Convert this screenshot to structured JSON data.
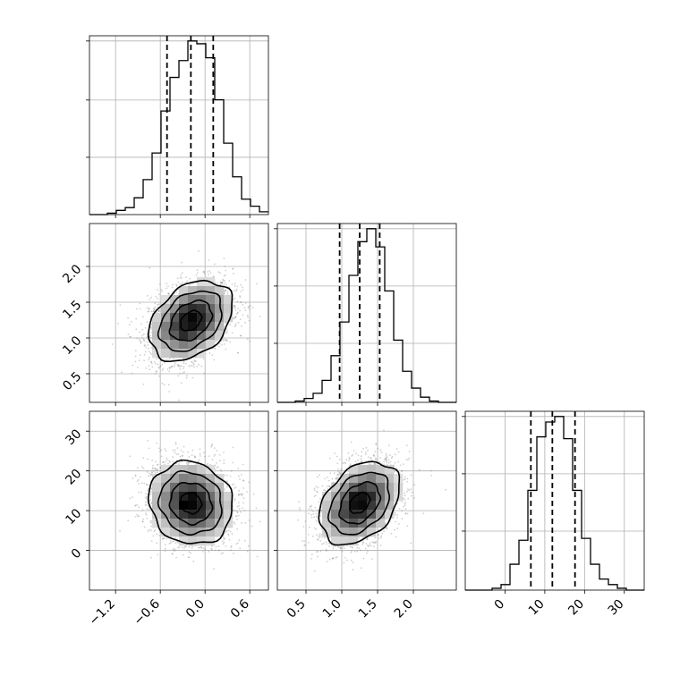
{
  "figure": {
    "type": "corner_plot",
    "background": "#ffffff",
    "line_color": "#000000",
    "grid_color": "#b0b0b0"
  },
  "chart_data": [
    {
      "type": "histogram",
      "parameter_index": 0,
      "range": [
        -1.55,
        0.85
      ],
      "bin_edges": [
        -1.55,
        -1.43,
        -1.31,
        -1.19,
        -1.07,
        -0.95,
        -0.83,
        -0.71,
        -0.59,
        -0.47,
        -0.35,
        -0.23,
        -0.11,
        0.01,
        0.13,
        0.25,
        0.37,
        0.49,
        0.61,
        0.73,
        0.85
      ],
      "counts": [
        0,
        0,
        1,
        3,
        5,
        12,
        25,
        44,
        74,
        98,
        110,
        124,
        122,
        112,
        82,
        51,
        27,
        11,
        6,
        2
      ],
      "quantiles": [
        -0.51,
        -0.19,
        0.11
      ],
      "yticks_relative": [
        0.33,
        0.66,
        1.0
      ],
      "grid": true
    },
    {
      "type": "histogram",
      "parameter_index": 1,
      "range": [
        0.1,
        2.6
      ],
      "bin_edges": [
        0.1,
        0.225,
        0.35,
        0.475,
        0.6,
        0.725,
        0.85,
        0.975,
        1.1,
        1.225,
        1.35,
        1.475,
        1.6,
        1.725,
        1.85,
        1.975,
        2.1,
        2.225,
        2.35,
        2.475,
        2.6
      ],
      "counts": [
        0,
        0,
        1,
        3,
        7,
        17,
        36,
        62,
        98,
        124,
        134,
        120,
        86,
        48,
        24,
        11,
        4,
        1,
        0,
        0
      ],
      "quantiles": [
        0.97,
        1.25,
        1.53
      ],
      "yticks_relative": [
        0.34,
        0.67,
        1.0
      ],
      "grid": true
    },
    {
      "type": "histogram",
      "parameter_index": 2,
      "range": [
        -10,
        35
      ],
      "bin_edges": [
        -10,
        -7.75,
        -5.5,
        -3.25,
        -1,
        1.25,
        3.5,
        5.75,
        8,
        10.25,
        12.5,
        14.75,
        17,
        19.25,
        21.5,
        23.75,
        26,
        28.25,
        30.5,
        32.75,
        35
      ],
      "counts": [
        0,
        0,
        0,
        1,
        3,
        14,
        27,
        54,
        83,
        91,
        94,
        82,
        54,
        28,
        14,
        6,
        3,
        1,
        0,
        0
      ],
      "quantiles": [
        6.5,
        11.9,
        17.6
      ],
      "yticks_relative": [
        0.34,
        0.67,
        1.0
      ],
      "grid": true
    },
    {
      "type": "2d_density",
      "x_parameter": 0,
      "y_parameter": 1,
      "xlim": [
        -1.55,
        0.85
      ],
      "ylim": [
        0.1,
        2.6
      ],
      "center": [
        -0.19,
        1.24
      ],
      "sigma": [
        0.28,
        0.28
      ],
      "correlation": 0.35,
      "contour_levels_sigma": [
        0.5,
        1.0,
        1.5,
        2.0
      ],
      "grid": true
    },
    {
      "type": "2d_density",
      "x_parameter": 0,
      "y_parameter": 2,
      "xlim": [
        -1.55,
        0.85
      ],
      "ylim": [
        -10,
        35
      ],
      "center": [
        -0.19,
        11.9
      ],
      "sigma": [
        0.28,
        5.2
      ],
      "correlation": -0.1,
      "contour_levels_sigma": [
        0.5,
        1.0,
        1.5,
        2.0
      ],
      "grid": true
    },
    {
      "type": "2d_density",
      "x_parameter": 1,
      "y_parameter": 2,
      "xlim": [
        0.1,
        2.6
      ],
      "ylim": [
        -10,
        35
      ],
      "center": [
        1.25,
        11.9
      ],
      "sigma": [
        0.28,
        5.2
      ],
      "correlation": 0.35,
      "contour_levels_sigma": [
        0.5,
        1.0,
        1.5,
        2.0
      ],
      "grid": true
    }
  ],
  "axes_ticks": {
    "param0_x_ticks": [
      {
        "value": -1.2,
        "label": "−1.2"
      },
      {
        "value": -0.6,
        "label": "−0.6"
      },
      {
        "value": 0.0,
        "label": "0.0"
      },
      {
        "value": 0.6,
        "label": "0.6"
      }
    ],
    "param1_ticks": [
      {
        "value": 0.5,
        "label": "0.5"
      },
      {
        "value": 1.0,
        "label": "1.0"
      },
      {
        "value": 1.5,
        "label": "1.5"
      },
      {
        "value": 2.0,
        "label": "2.0"
      }
    ],
    "param2_ticks": [
      {
        "value": 0,
        "label": "0"
      },
      {
        "value": 10,
        "label": "10"
      },
      {
        "value": 20,
        "label": "20"
      },
      {
        "value": 30,
        "label": "30"
      }
    ]
  }
}
